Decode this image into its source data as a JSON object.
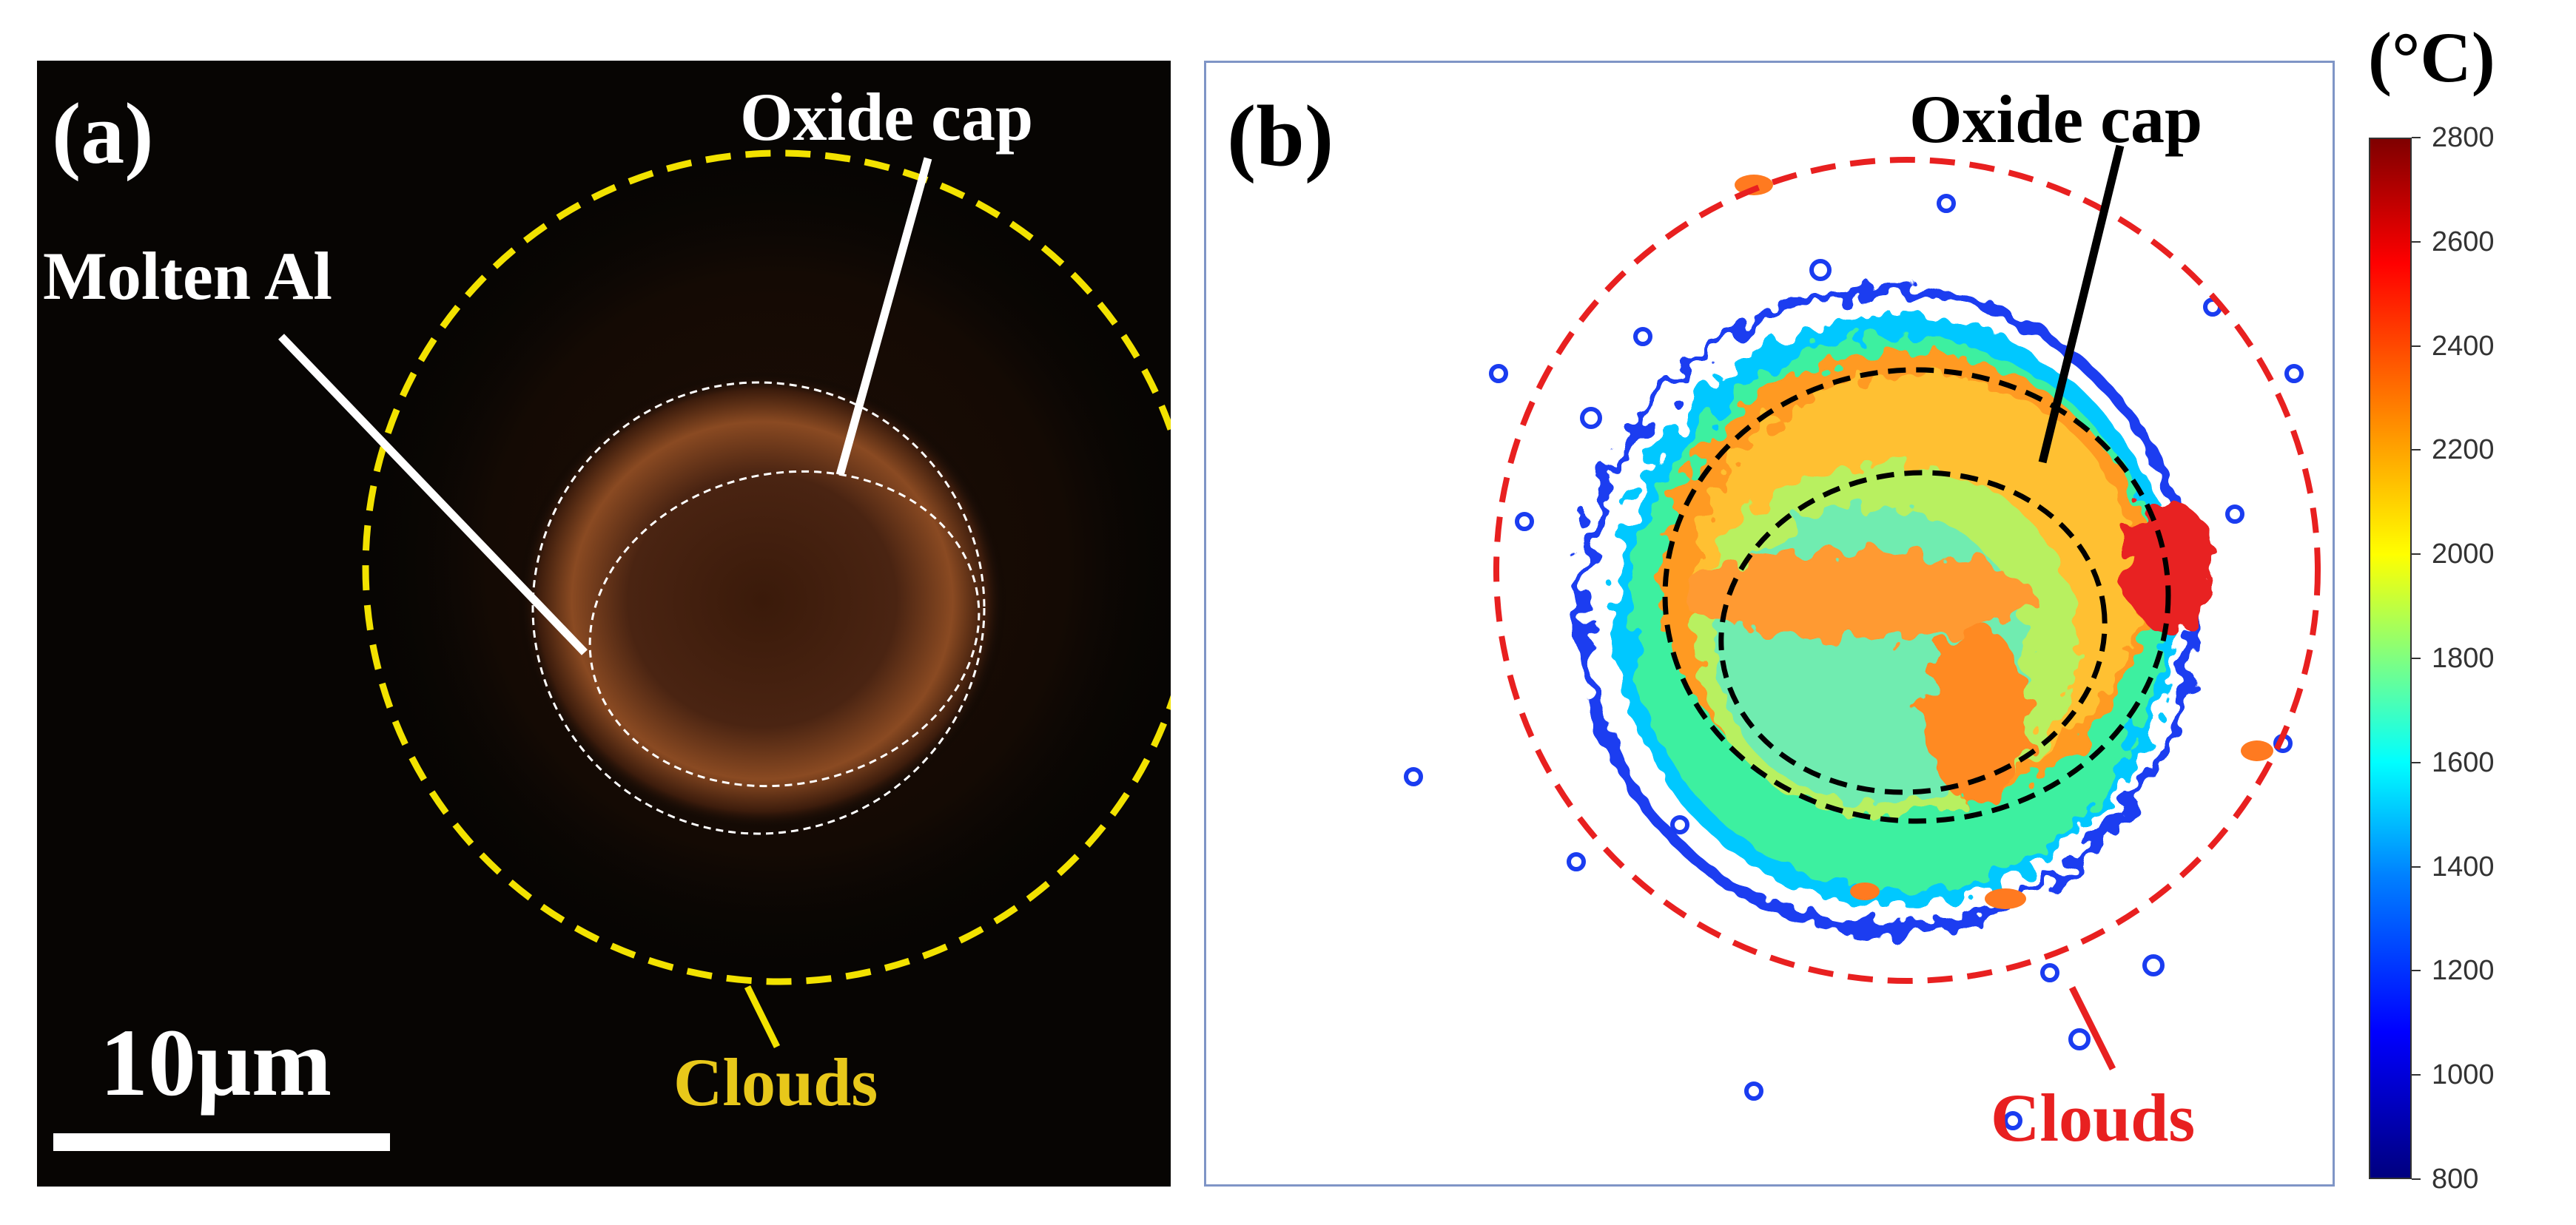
{
  "panel_a": {
    "label": "(a)",
    "oxide_cap": "Oxide cap",
    "molten_al": "Molten Al",
    "clouds": "Clouds",
    "scale_bar": "10µm",
    "colors": {
      "background": "#070503",
      "glow": "#8a4a22",
      "clouds_circle": "#f2e200",
      "clouds_label": "#e8c81a",
      "text": "#ffffff"
    }
  },
  "panel_b": {
    "label": "(b)",
    "oxide_cap": "Oxide cap",
    "clouds": "Clouds",
    "colors": {
      "clouds_circle": "#e82020",
      "clouds_label": "#e82020",
      "oxide_outline": "#000000"
    }
  },
  "colorbar": {
    "unit": "(°C)",
    "min": 800,
    "max": 2800,
    "ticks": [
      "2800",
      "2600",
      "2400",
      "2200",
      "2000",
      "1800",
      "1600",
      "1400",
      "1200",
      "1000",
      "800"
    ]
  }
}
